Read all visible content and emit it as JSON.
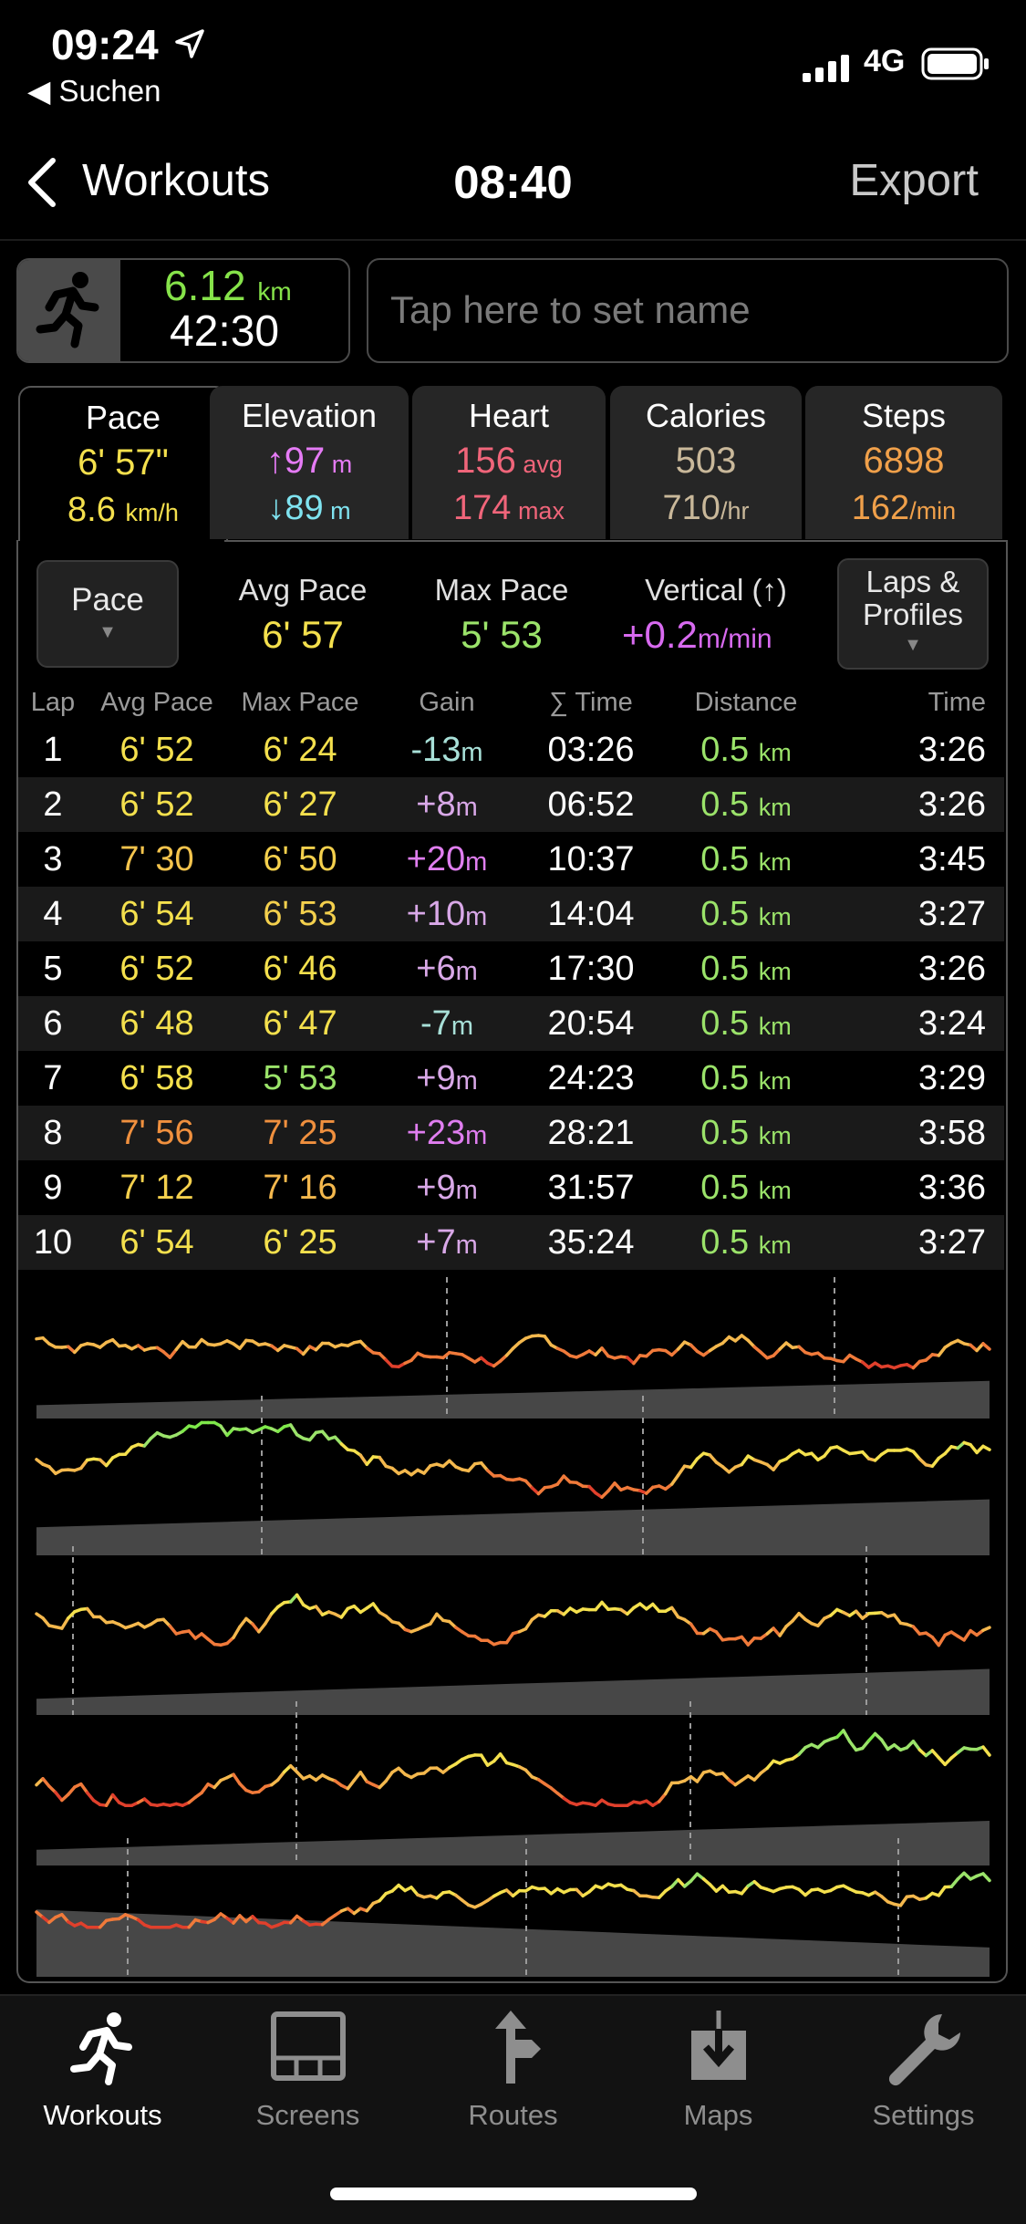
{
  "status": {
    "time": "09:24",
    "back_app": "◀ Suchen",
    "network": "4G"
  },
  "nav": {
    "back_label": "Workouts",
    "title": "08:40",
    "export_label": "Export"
  },
  "summary": {
    "distance_value": "6.12",
    "distance_unit": "km",
    "duration": "42:30",
    "name_placeholder": "Tap here to set name"
  },
  "tabs": [
    {
      "label": "Pace",
      "v1": "6' 57\"",
      "v1u": "",
      "v2": "8.6 ",
      "v2u": "km/h",
      "c1": "#f4e04d",
      "c2": "#f4e04d"
    },
    {
      "label": "Elevation",
      "v1": "↑97",
      "v1u": " m",
      "v2": "↓89",
      "v2u": " m",
      "c1": "#e57bf5",
      "c2": "#7fe3f0"
    },
    {
      "label": "Heart",
      "v1": "156",
      "v1u": " avg",
      "v2": "174",
      "v2u": " max",
      "c1": "#f0657a",
      "c2": "#f0657a"
    },
    {
      "label": "Calories",
      "v1": "503",
      "v1u": "",
      "v2": "710",
      "v2u": "/hr",
      "c1": "#c9b89a",
      "c2": "#c9b89a"
    },
    {
      "label": "Steps",
      "v1": "6898",
      "v1u": "",
      "v2": "162",
      "v2u": "/min",
      "c1": "#f0a04a",
      "c2": "#f0a04a"
    }
  ],
  "controls": {
    "pace_button": "Pace",
    "avg_pace_label": "Avg Pace",
    "avg_pace_value": "6' 57",
    "max_pace_label": "Max Pace",
    "max_pace_value": "5' 53",
    "vertical_label": "Vertical (↑)",
    "vertical_value": "+0.2",
    "vertical_unit": "m/min",
    "laps_button_line1": "Laps &",
    "laps_button_line2": "Profiles"
  },
  "table": {
    "headers": [
      "Lap",
      "Avg Pace",
      "Max Pace",
      "Gain",
      "∑ Time",
      "Distance",
      "Time"
    ],
    "rows": [
      {
        "lap": "1",
        "avg": "6' 52",
        "avgc": "#f4e04d",
        "max": "6' 24",
        "maxc": "#f4e04d",
        "gain": "-13",
        "gainc": "#a8e0d8",
        "cum": "03:26",
        "dist": "0.5",
        "time": "3:26"
      },
      {
        "lap": "2",
        "avg": "6' 52",
        "avgc": "#f4e04d",
        "max": "6' 27",
        "maxc": "#f4e04d",
        "gain": "+8",
        "gainc": "#d9a8e8",
        "cum": "06:52",
        "dist": "0.5",
        "time": "3:26"
      },
      {
        "lap": "3",
        "avg": "7' 30",
        "avgc": "#f4c44d",
        "max": "6' 50",
        "maxc": "#f4d04d",
        "gain": "+20",
        "gainc": "#e07ef0",
        "cum": "10:37",
        "dist": "0.5",
        "time": "3:45"
      },
      {
        "lap": "4",
        "avg": "6' 54",
        "avgc": "#f4e04d",
        "max": "6' 53",
        "maxc": "#f4d04d",
        "gain": "+10",
        "gainc": "#d9a8e8",
        "cum": "14:04",
        "dist": "0.5",
        "time": "3:27"
      },
      {
        "lap": "5",
        "avg": "6' 52",
        "avgc": "#f4e04d",
        "max": "6' 46",
        "maxc": "#f4e04d",
        "gain": "+6",
        "gainc": "#d9a8e8",
        "cum": "17:30",
        "dist": "0.5",
        "time": "3:26"
      },
      {
        "lap": "6",
        "avg": "6' 48",
        "avgc": "#f4e04d",
        "max": "6' 47",
        "maxc": "#f4e04d",
        "gain": "-7",
        "gainc": "#a8e0d8",
        "cum": "20:54",
        "dist": "0.5",
        "time": "3:24"
      },
      {
        "lap": "7",
        "avg": "6' 58",
        "avgc": "#f4e04d",
        "max": "5' 53",
        "maxc": "#9be36a",
        "gain": "+9",
        "gainc": "#d9a8e8",
        "cum": "24:23",
        "dist": "0.5",
        "time": "3:29"
      },
      {
        "lap": "8",
        "avg": "7' 56",
        "avgc": "#f0903e",
        "max": "7' 25",
        "maxc": "#f0903e",
        "gain": "+23",
        "gainc": "#e07ef0",
        "cum": "28:21",
        "dist": "0.5",
        "time": "3:58"
      },
      {
        "lap": "9",
        "avg": "7' 12",
        "avgc": "#f4d04d",
        "max": "7' 16",
        "maxc": "#f4b84d",
        "gain": "+9",
        "gainc": "#d9a8e8",
        "cum": "31:57",
        "dist": "0.5",
        "time": "3:36"
      },
      {
        "lap": "10",
        "avg": "6' 54",
        "avgc": "#f4e04d",
        "max": "6' 25",
        "maxc": "#f4e04d",
        "gain": "+7",
        "gainc": "#d9a8e8",
        "cum": "35:24",
        "dist": "0.5",
        "time": "3:27"
      }
    ],
    "dist_unit": "km",
    "gain_unit": "m"
  },
  "tabbar": [
    {
      "label": "Workouts",
      "icon": "runner-icon",
      "selected": true
    },
    {
      "label": "Screens",
      "icon": "screens-icon",
      "selected": false
    },
    {
      "label": "Routes",
      "icon": "routes-icon",
      "selected": false
    },
    {
      "label": "Maps",
      "icon": "maps-icon",
      "selected": false
    },
    {
      "label": "Settings",
      "icon": "wrench-icon",
      "selected": false
    }
  ],
  "colors": {
    "green": "#86e34a",
    "yellow": "#f4e04d",
    "orange": "#f0903e",
    "red": "#e0402c",
    "panel_border": "#555555"
  }
}
